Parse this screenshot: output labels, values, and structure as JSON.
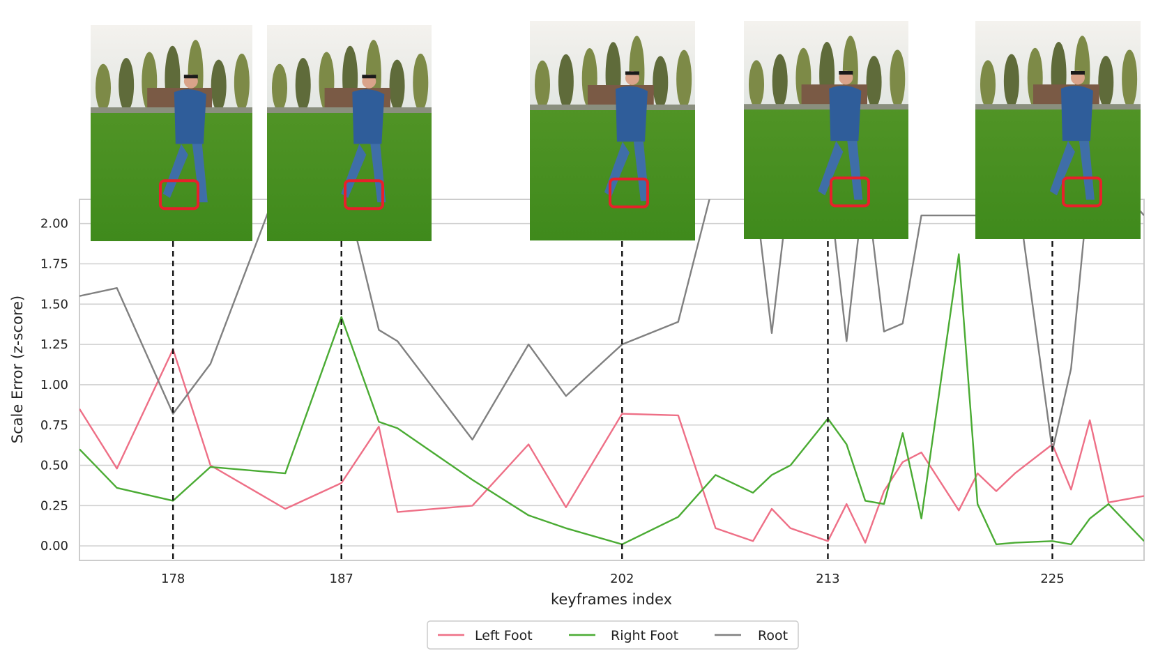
{
  "chart_data": {
    "type": "line",
    "xlabel": "keyframes index",
    "ylabel": "Scale Error (z-score)",
    "x_ticks": [
      178,
      187,
      202,
      213,
      225
    ],
    "y_ticks": [
      "0.00",
      "0.25",
      "0.50",
      "0.75",
      "1.00",
      "1.25",
      "1.50",
      "1.75",
      "2.00"
    ],
    "xlim": [
      173,
      229.9
    ],
    "ylim": [
      -0.09,
      2.15
    ],
    "grid": "horizontal",
    "legend_position": "bottom-center",
    "highlighted_frames": [
      178,
      187,
      202,
      213,
      225
    ],
    "colors": {
      "left_foot": "#ee6f86",
      "right_foot": "#4aab33",
      "root": "#808080",
      "marker_box": "#e8202a"
    },
    "series": [
      {
        "name": "Left Foot",
        "x": [
          173,
          175,
          178,
          180,
          184,
          187,
          189,
          190,
          194,
          197,
          199,
          202,
          205,
          207,
          209,
          210,
          211,
          213,
          214,
          215,
          216,
          217,
          218,
          220,
          221,
          222,
          223,
          225,
          226,
          227,
          228,
          229.9
        ],
        "y": [
          0.85,
          0.48,
          1.22,
          0.5,
          0.23,
          0.39,
          0.74,
          0.21,
          0.25,
          0.63,
          0.24,
          0.82,
          0.81,
          0.11,
          0.03,
          0.23,
          0.11,
          0.03,
          0.26,
          0.02,
          0.34,
          0.52,
          0.58,
          0.22,
          0.45,
          0.34,
          0.45,
          0.63,
          0.35,
          0.78,
          0.27,
          0.31
        ]
      },
      {
        "name": "Right Foot",
        "x": [
          173,
          175,
          178,
          180,
          184,
          187,
          189,
          190,
          194,
          197,
          199,
          202,
          205,
          207,
          209,
          210,
          211,
          213,
          214,
          215,
          216,
          217,
          218,
          220,
          221,
          222,
          223,
          225,
          226,
          227,
          228,
          229.9
        ],
        "y": [
          0.6,
          0.36,
          0.28,
          0.49,
          0.45,
          1.42,
          0.77,
          0.73,
          0.41,
          0.19,
          0.11,
          0.01,
          0.18,
          0.44,
          0.33,
          0.44,
          0.5,
          0.79,
          0.63,
          0.28,
          0.26,
          0.7,
          0.17,
          1.81,
          0.26,
          0.01,
          0.02,
          0.03,
          0.01,
          0.17,
          0.26,
          0.03
        ]
      },
      {
        "name": "Root",
        "x": [
          173,
          175,
          178,
          180,
          184,
          187,
          189,
          190,
          194,
          197,
          199,
          202,
          205,
          207,
          209,
          210,
          211,
          213,
          214,
          215,
          216,
          217,
          218,
          220,
          221,
          222,
          223,
          225,
          226,
          227,
          228,
          229.9
        ],
        "y": [
          1.55,
          1.6,
          0.82,
          1.13,
          2.35,
          2.3,
          1.34,
          1.27,
          0.66,
          1.25,
          0.93,
          1.25,
          1.39,
          2.3,
          2.3,
          1.32,
          2.3,
          2.3,
          1.27,
          2.3,
          1.33,
          1.38,
          2.05,
          2.05,
          2.05,
          2.05,
          2.3,
          0.59,
          1.1,
          2.3,
          2.3,
          2.05
        ]
      }
    ]
  }
}
